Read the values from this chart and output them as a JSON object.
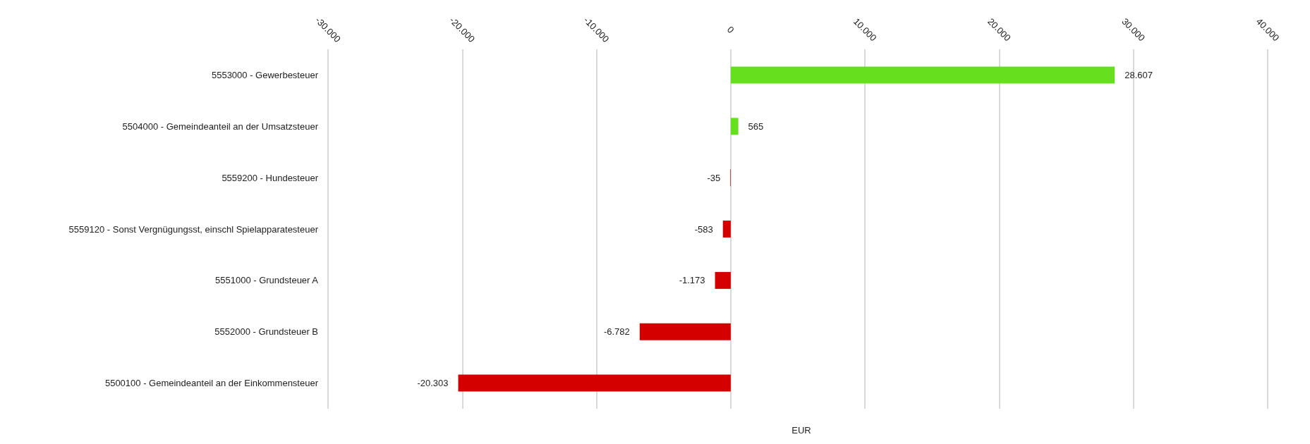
{
  "chart_data": {
    "type": "bar",
    "orientation": "horizontal",
    "xlabel": "EUR",
    "categories": [
      "5553000 - Gewerbesteuer",
      "5504000 - Gemeindeanteil an der Umsatzsteuer",
      "5559200 - Hundesteuer",
      "5559120 - Sonst Vergnügungsst, einschl Spielapparatesteuer",
      "5551000 - Grundsteuer A",
      "5552000 - Grundsteuer B",
      "5500100 - Gemeindeanteil an der Einkommensteuer"
    ],
    "values": [
      28607,
      565,
      -35,
      -583,
      -1173,
      -6782,
      -20303
    ],
    "value_labels": [
      "28.607",
      "565",
      "-35",
      "-583",
      "-1.173",
      "-6.782",
      "-20.303"
    ],
    "colors": [
      "#66e01e",
      "#66e01e",
      "#d40000",
      "#d40000",
      "#d40000",
      "#d40000",
      "#d40000"
    ],
    "xlim": [
      -30000,
      40000
    ],
    "xticks": [
      {
        "value": -30000,
        "label": "-30.000"
      },
      {
        "value": -20000,
        "label": "-20.000"
      },
      {
        "value": -10000,
        "label": "-10.000"
      },
      0,
      {
        "value": 10000,
        "label": "10.000"
      },
      {
        "value": 20000,
        "label": "20.000"
      },
      {
        "value": 30000,
        "label": "30.000"
      },
      {
        "value": 40000,
        "label": "40.000"
      }
    ],
    "grid": "x"
  }
}
